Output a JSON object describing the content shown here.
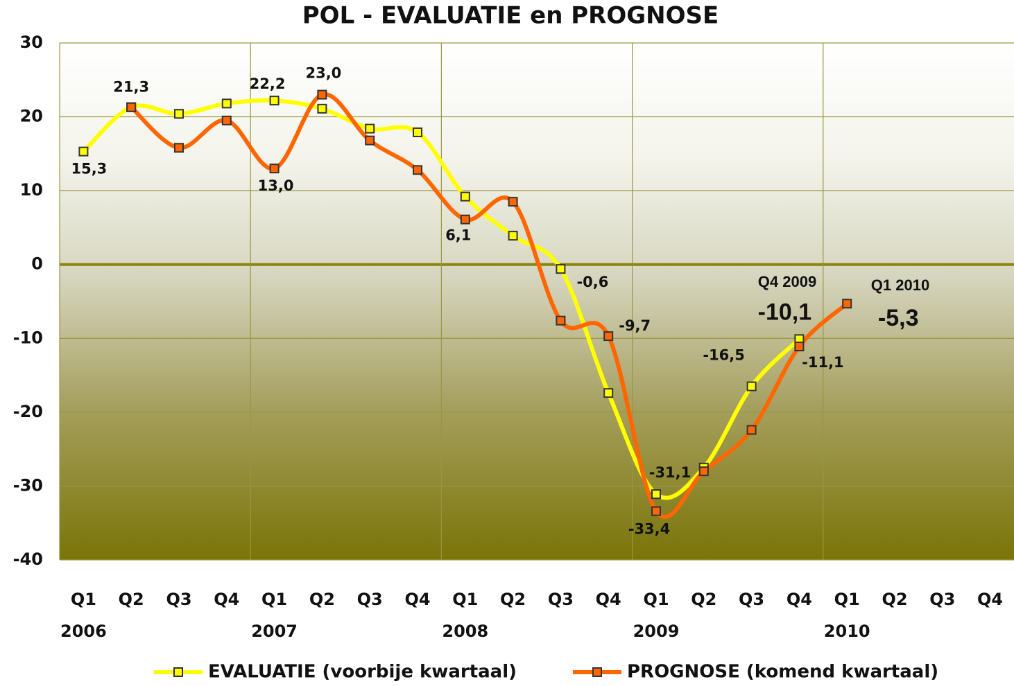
{
  "chart_data": {
    "type": "line",
    "title": "POL - EVALUATIE en PROGNOSE",
    "categories": [
      "Q1",
      "Q2",
      "Q3",
      "Q4",
      "Q1",
      "Q2",
      "Q3",
      "Q4",
      "Q1",
      "Q2",
      "Q3",
      "Q4",
      "Q1",
      "Q2",
      "Q3",
      "Q4",
      "Q1",
      "Q2",
      "Q3",
      "Q4"
    ],
    "years": [
      "2006",
      null,
      null,
      null,
      "2007",
      null,
      null,
      null,
      "2008",
      null,
      null,
      null,
      "2009",
      null,
      null,
      null,
      "2010",
      null,
      null,
      null
    ],
    "series": [
      {
        "name": "EVALUATIE (voorbije kwartaal)",
        "color": "#ffff00",
        "values": [
          15.3,
          21.3,
          20.4,
          21.8,
          22.2,
          21.1,
          18.4,
          17.9,
          9.2,
          3.9,
          -0.6,
          -17.4,
          -31.1,
          -27.5,
          -16.5,
          -10.1,
          null,
          null,
          null,
          null
        ],
        "value_labels": [
          "15,3",
          "21,3",
          null,
          null,
          "22,2",
          null,
          null,
          null,
          null,
          null,
          "-0,6",
          null,
          "-31,1",
          null,
          "-16,5",
          "-10,1",
          null,
          null,
          null,
          null
        ]
      },
      {
        "name": "PROGNOSE (komend kwartaal)",
        "color": "#ff6600",
        "values": [
          null,
          21.3,
          15.8,
          19.5,
          13.0,
          23.0,
          16.8,
          12.8,
          6.1,
          8.5,
          -7.6,
          -9.7,
          -33.4,
          -28.0,
          -22.4,
          -11.1,
          -5.3,
          null,
          null,
          null
        ],
        "value_labels": [
          null,
          null,
          null,
          null,
          "13,0",
          "23,0",
          null,
          null,
          "6,1",
          null,
          null,
          "-9,7",
          "-33,4",
          null,
          null,
          "-11,1",
          "-5,3",
          null,
          null,
          null
        ]
      }
    ],
    "annotations": [
      "Q4 2009",
      "Q1 2010"
    ],
    "ylim": [
      -40,
      30
    ],
    "yticks": [
      -40,
      -30,
      -20,
      -10,
      0,
      10,
      20,
      30
    ],
    "grid": true
  }
}
